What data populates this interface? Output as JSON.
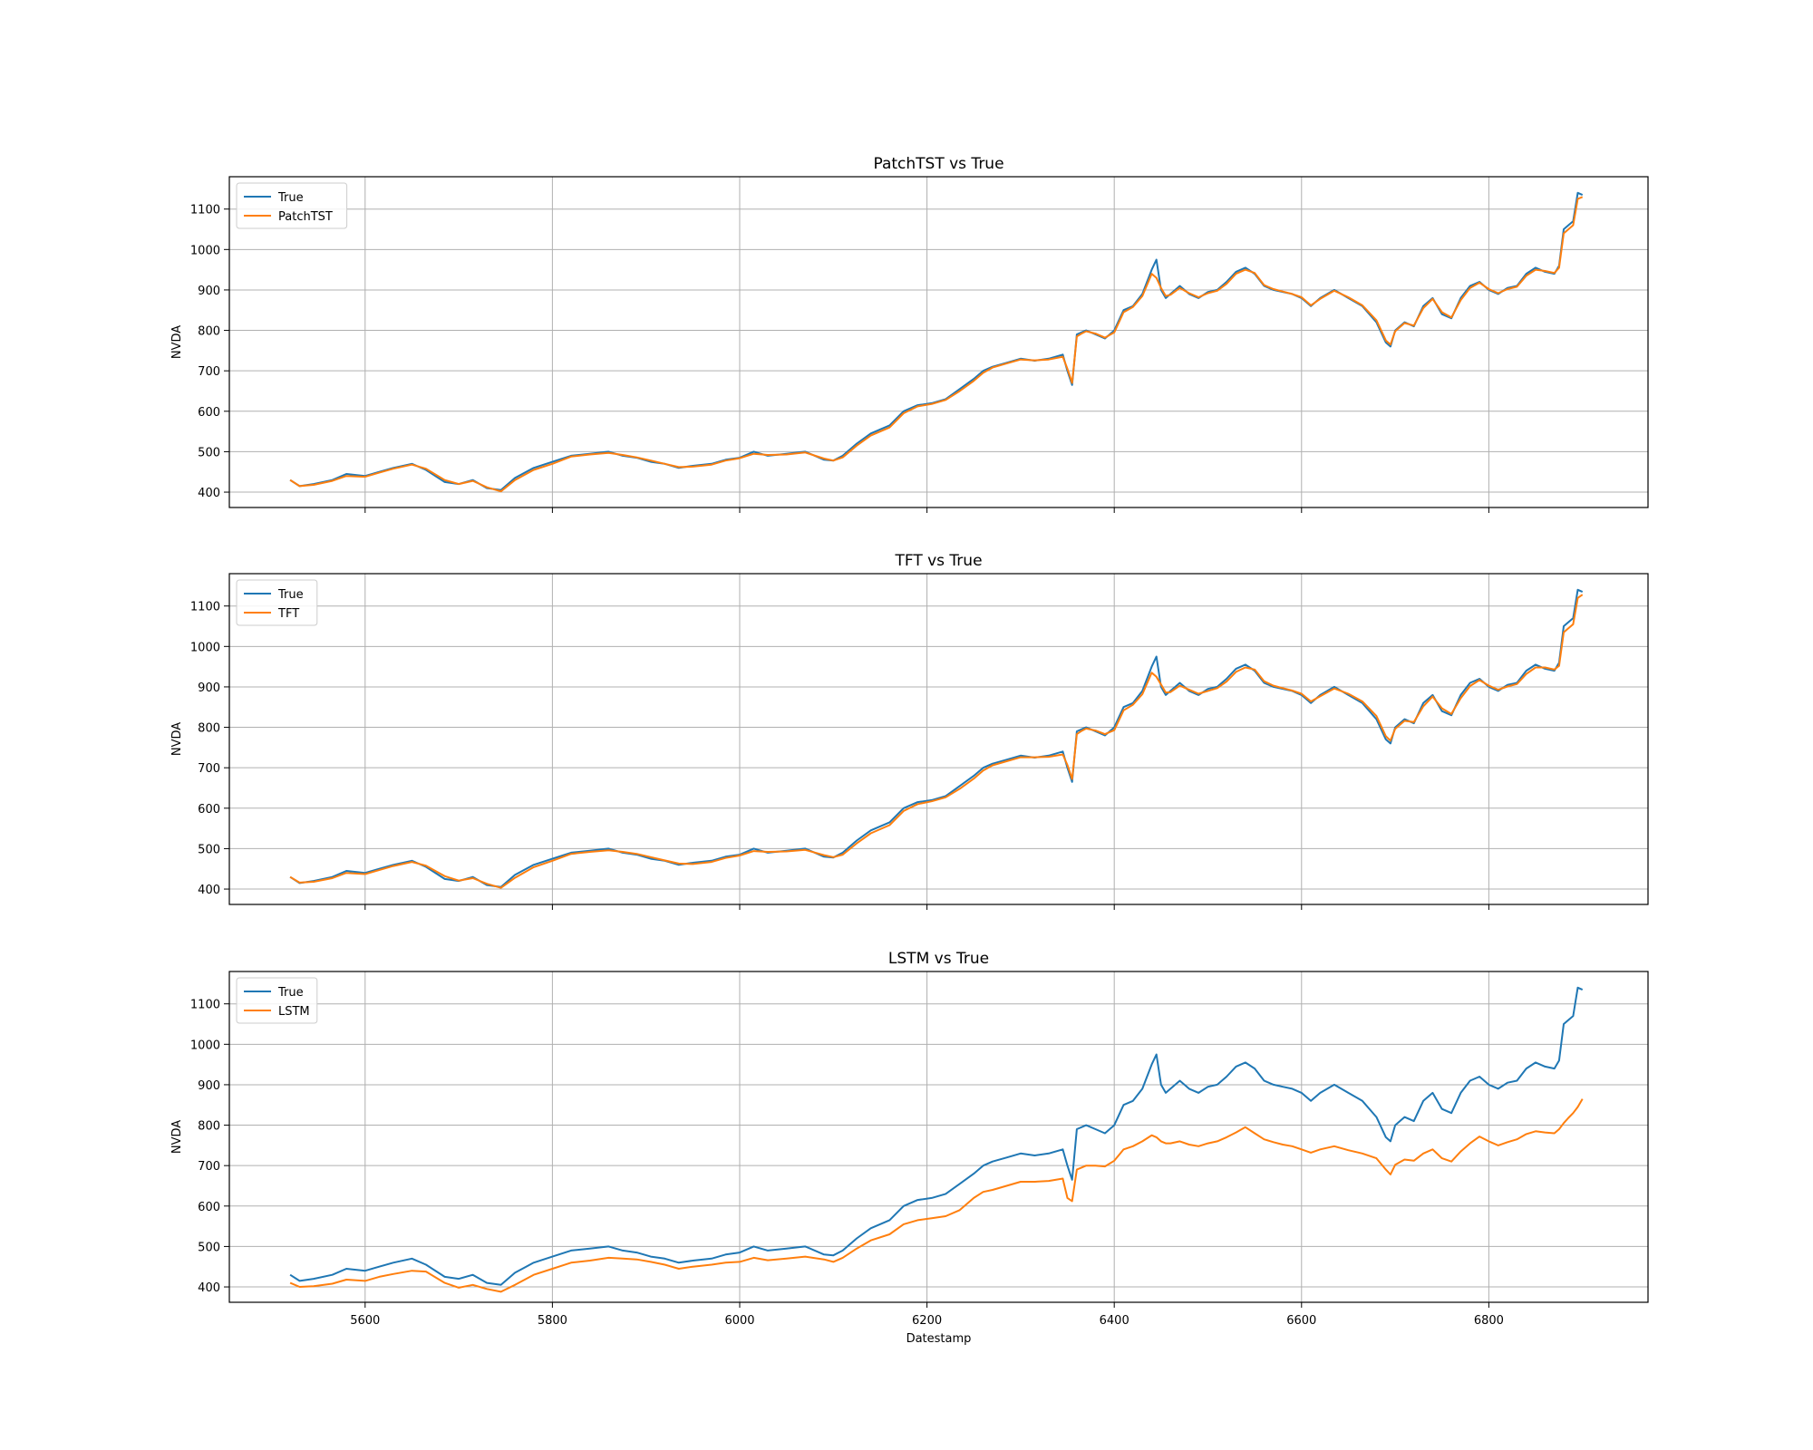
{
  "colors": {
    "true_series": "#1f77b4",
    "pred_series": "#ff7f0e",
    "grid": "#b0b0b0",
    "axes": "#000000"
  },
  "shared_xlabel": "Datestamp",
  "chart_data": [
    {
      "type": "line",
      "title": "PatchTST vs True",
      "xlabel": "",
      "ylabel": "NVDA",
      "xlim": [
        5455,
        6970
      ],
      "ylim": [
        362,
        1180
      ],
      "xticks": [
        5600,
        5800,
        6000,
        6200,
        6400,
        6600,
        6800
      ],
      "yticks": [
        400,
        500,
        600,
        700,
        800,
        900,
        1000,
        1100
      ],
      "grid": true,
      "legend": "top-left",
      "x": [
        5520,
        5530,
        5545,
        5565,
        5580,
        5600,
        5615,
        5630,
        5650,
        5665,
        5685,
        5700,
        5715,
        5730,
        5745,
        5760,
        5780,
        5800,
        5820,
        5840,
        5860,
        5875,
        5890,
        5905,
        5920,
        5935,
        5950,
        5970,
        5985,
        6000,
        6015,
        6030,
        6050,
        6070,
        6090,
        6100,
        6110,
        6125,
        6140,
        6160,
        6175,
        6190,
        6205,
        6220,
        6235,
        6250,
        6260,
        6270,
        6285,
        6300,
        6315,
        6330,
        6345,
        6350,
        6355,
        6360,
        6365,
        6370,
        6380,
        6390,
        6400,
        6410,
        6420,
        6430,
        6440,
        6445,
        6450,
        6455,
        6460,
        6470,
        6480,
        6490,
        6500,
        6510,
        6520,
        6530,
        6540,
        6550,
        6560,
        6570,
        6580,
        6590,
        6600,
        6610,
        6620,
        6635,
        6650,
        6665,
        6680,
        6690,
        6695,
        6700,
        6710,
        6720,
        6730,
        6740,
        6750,
        6760,
        6770,
        6780,
        6790,
        6800,
        6810,
        6820,
        6830,
        6840,
        6850,
        6860,
        6870,
        6875,
        6880,
        6885,
        6890,
        6895,
        6900
      ],
      "series": [
        {
          "name": "True",
          "values": [
            430,
            415,
            420,
            430,
            445,
            440,
            450,
            460,
            470,
            455,
            425,
            420,
            430,
            410,
            405,
            435,
            460,
            475,
            490,
            495,
            500,
            490,
            485,
            475,
            470,
            460,
            465,
            470,
            480,
            485,
            500,
            490,
            495,
            500,
            480,
            478,
            490,
            520,
            545,
            565,
            600,
            615,
            620,
            630,
            655,
            680,
            700,
            710,
            720,
            730,
            725,
            730,
            740,
            700,
            665,
            790,
            795,
            800,
            790,
            780,
            800,
            850,
            860,
            890,
            950,
            975,
            900,
            880,
            890,
            910,
            890,
            880,
            895,
            900,
            920,
            945,
            955,
            940,
            910,
            900,
            895,
            890,
            880,
            860,
            880,
            900,
            880,
            860,
            820,
            770,
            760,
            800,
            820,
            810,
            860,
            880,
            840,
            830,
            880,
            910,
            920,
            900,
            890,
            905,
            910,
            940,
            955,
            945,
            940,
            960,
            1050,
            1060,
            1070,
            1140,
            1135
          ]
        },
        {
          "name": "PatchTST",
          "values": [
            430,
            415,
            418,
            428,
            440,
            438,
            448,
            458,
            468,
            458,
            430,
            420,
            428,
            412,
            402,
            430,
            455,
            470,
            488,
            493,
            497,
            492,
            486,
            478,
            470,
            462,
            463,
            468,
            478,
            484,
            495,
            492,
            493,
            498,
            483,
            478,
            486,
            515,
            540,
            560,
            595,
            612,
            618,
            628,
            650,
            675,
            695,
            708,
            718,
            728,
            726,
            728,
            735,
            705,
            670,
            785,
            792,
            798,
            792,
            782,
            795,
            845,
            858,
            885,
            940,
            930,
            905,
            885,
            888,
            905,
            892,
            882,
            892,
            898,
            915,
            940,
            950,
            942,
            912,
            902,
            896,
            890,
            882,
            862,
            878,
            898,
            882,
            862,
            825,
            775,
            765,
            798,
            818,
            812,
            855,
            878,
            845,
            832,
            875,
            905,
            918,
            902,
            892,
            902,
            908,
            935,
            950,
            947,
            942,
            955,
            1040,
            1050,
            1060,
            1125,
            1130
          ]
        }
      ]
    },
    {
      "type": "line",
      "title": "TFT vs True",
      "xlabel": "",
      "ylabel": "NVDA",
      "xlim": [
        5455,
        6970
      ],
      "ylim": [
        362,
        1180
      ],
      "xticks": [
        5600,
        5800,
        6000,
        6200,
        6400,
        6600,
        6800
      ],
      "yticks": [
        400,
        500,
        600,
        700,
        800,
        900,
        1000,
        1100
      ],
      "grid": true,
      "legend": "top-left",
      "x": [
        5520,
        5530,
        5545,
        5565,
        5580,
        5600,
        5615,
        5630,
        5650,
        5665,
        5685,
        5700,
        5715,
        5730,
        5745,
        5760,
        5780,
        5800,
        5820,
        5840,
        5860,
        5875,
        5890,
        5905,
        5920,
        5935,
        5950,
        5970,
        5985,
        6000,
        6015,
        6030,
        6050,
        6070,
        6090,
        6100,
        6110,
        6125,
        6140,
        6160,
        6175,
        6190,
        6205,
        6220,
        6235,
        6250,
        6260,
        6270,
        6285,
        6300,
        6315,
        6330,
        6345,
        6350,
        6355,
        6360,
        6365,
        6370,
        6380,
        6390,
        6400,
        6410,
        6420,
        6430,
        6440,
        6445,
        6450,
        6455,
        6460,
        6470,
        6480,
        6490,
        6500,
        6510,
        6520,
        6530,
        6540,
        6550,
        6560,
        6570,
        6580,
        6590,
        6600,
        6610,
        6620,
        6635,
        6650,
        6665,
        6680,
        6690,
        6695,
        6700,
        6710,
        6720,
        6730,
        6740,
        6750,
        6760,
        6770,
        6780,
        6790,
        6800,
        6810,
        6820,
        6830,
        6840,
        6850,
        6860,
        6870,
        6875,
        6880,
        6885,
        6890,
        6895,
        6900
      ],
      "series": [
        {
          "name": "True",
          "values": [
            430,
            415,
            420,
            430,
            445,
            440,
            450,
            460,
            470,
            455,
            425,
            420,
            430,
            410,
            405,
            435,
            460,
            475,
            490,
            495,
            500,
            490,
            485,
            475,
            470,
            460,
            465,
            470,
            480,
            485,
            500,
            490,
            495,
            500,
            480,
            478,
            490,
            520,
            545,
            565,
            600,
            615,
            620,
            630,
            655,
            680,
            700,
            710,
            720,
            730,
            725,
            730,
            740,
            700,
            665,
            790,
            795,
            800,
            790,
            780,
            800,
            850,
            860,
            890,
            950,
            975,
            900,
            880,
            890,
            910,
            890,
            880,
            895,
            900,
            920,
            945,
            955,
            940,
            910,
            900,
            895,
            890,
            880,
            860,
            880,
            900,
            880,
            860,
            820,
            770,
            760,
            800,
            820,
            810,
            860,
            880,
            840,
            830,
            880,
            910,
            920,
            900,
            890,
            905,
            910,
            940,
            955,
            945,
            940,
            960,
            1050,
            1060,
            1070,
            1140,
            1135
          ]
        },
        {
          "name": "TFT",
          "values": [
            430,
            416,
            418,
            427,
            440,
            437,
            447,
            457,
            467,
            458,
            432,
            421,
            427,
            413,
            403,
            428,
            454,
            470,
            487,
            492,
            496,
            492,
            487,
            479,
            471,
            463,
            462,
            467,
            477,
            483,
            494,
            492,
            493,
            497,
            484,
            479,
            485,
            513,
            538,
            558,
            593,
            610,
            617,
            627,
            648,
            673,
            693,
            706,
            716,
            726,
            726,
            727,
            733,
            707,
            672,
            783,
            791,
            797,
            792,
            783,
            793,
            842,
            856,
            882,
            935,
            925,
            906,
            886,
            887,
            903,
            893,
            883,
            890,
            897,
            913,
            937,
            948,
            943,
            914,
            903,
            897,
            891,
            883,
            864,
            877,
            896,
            883,
            864,
            828,
            778,
            767,
            796,
            816,
            813,
            852,
            876,
            847,
            833,
            872,
            902,
            917,
            903,
            893,
            901,
            907,
            932,
            948,
            948,
            943,
            952,
            1035,
            1045,
            1055,
            1120,
            1128
          ]
        }
      ]
    },
    {
      "type": "line",
      "title": "LSTM vs True",
      "xlabel": "Datestamp",
      "ylabel": "NVDA",
      "xlim": [
        5455,
        6970
      ],
      "ylim": [
        362,
        1180
      ],
      "xticks": [
        5600,
        5800,
        6000,
        6200,
        6400,
        6600,
        6800
      ],
      "xticklabels": [
        "5600",
        "5800",
        "6000",
        "6200",
        "6400",
        "6600",
        "6800"
      ],
      "yticks": [
        400,
        500,
        600,
        700,
        800,
        900,
        1000,
        1100
      ],
      "grid": true,
      "legend": "top-left",
      "x": [
        5520,
        5530,
        5545,
        5565,
        5580,
        5600,
        5615,
        5630,
        5650,
        5665,
        5685,
        5700,
        5715,
        5730,
        5745,
        5760,
        5780,
        5800,
        5820,
        5840,
        5860,
        5875,
        5890,
        5905,
        5920,
        5935,
        5950,
        5970,
        5985,
        6000,
        6015,
        6030,
        6050,
        6070,
        6090,
        6100,
        6110,
        6125,
        6140,
        6160,
        6175,
        6190,
        6205,
        6220,
        6235,
        6250,
        6260,
        6270,
        6285,
        6300,
        6315,
        6330,
        6345,
        6350,
        6355,
        6360,
        6365,
        6370,
        6380,
        6390,
        6400,
        6410,
        6420,
        6430,
        6440,
        6445,
        6450,
        6455,
        6460,
        6470,
        6480,
        6490,
        6500,
        6510,
        6520,
        6530,
        6540,
        6550,
        6560,
        6570,
        6580,
        6590,
        6600,
        6610,
        6620,
        6635,
        6650,
        6665,
        6680,
        6690,
        6695,
        6700,
        6710,
        6720,
        6730,
        6740,
        6750,
        6760,
        6770,
        6780,
        6790,
        6800,
        6810,
        6820,
        6830,
        6840,
        6850,
        6860,
        6870,
        6875,
        6880,
        6885,
        6890,
        6895,
        6900
      ],
      "series": [
        {
          "name": "True",
          "values": [
            430,
            415,
            420,
            430,
            445,
            440,
            450,
            460,
            470,
            455,
            425,
            420,
            430,
            410,
            405,
            435,
            460,
            475,
            490,
            495,
            500,
            490,
            485,
            475,
            470,
            460,
            465,
            470,
            480,
            485,
            500,
            490,
            495,
            500,
            480,
            478,
            490,
            520,
            545,
            565,
            600,
            615,
            620,
            630,
            655,
            680,
            700,
            710,
            720,
            730,
            725,
            730,
            740,
            700,
            665,
            790,
            795,
            800,
            790,
            780,
            800,
            850,
            860,
            890,
            950,
            975,
            900,
            880,
            890,
            910,
            890,
            880,
            895,
            900,
            920,
            945,
            955,
            940,
            910,
            900,
            895,
            890,
            880,
            860,
            880,
            900,
            880,
            860,
            820,
            770,
            760,
            800,
            820,
            810,
            860,
            880,
            840,
            830,
            880,
            910,
            920,
            900,
            890,
            905,
            910,
            940,
            955,
            945,
            940,
            960,
            1050,
            1060,
            1070,
            1140,
            1135
          ]
        },
        {
          "name": "LSTM",
          "values": [
            410,
            400,
            402,
            408,
            418,
            415,
            425,
            432,
            440,
            438,
            410,
            398,
            405,
            395,
            388,
            405,
            430,
            445,
            460,
            465,
            472,
            470,
            468,
            462,
            455,
            445,
            450,
            455,
            460,
            462,
            472,
            466,
            470,
            475,
            468,
            462,
            472,
            495,
            515,
            530,
            555,
            565,
            570,
            575,
            590,
            620,
            635,
            640,
            650,
            660,
            660,
            662,
            668,
            620,
            612,
            690,
            695,
            700,
            700,
            698,
            712,
            740,
            748,
            760,
            775,
            770,
            760,
            755,
            755,
            760,
            752,
            748,
            755,
            760,
            770,
            782,
            795,
            780,
            765,
            758,
            752,
            748,
            740,
            732,
            740,
            748,
            738,
            730,
            718,
            690,
            678,
            702,
            715,
            712,
            730,
            740,
            718,
            710,
            735,
            755,
            772,
            760,
            750,
            758,
            765,
            778,
            785,
            782,
            780,
            790,
            805,
            818,
            830,
            845,
            865
          ]
        }
      ]
    }
  ]
}
